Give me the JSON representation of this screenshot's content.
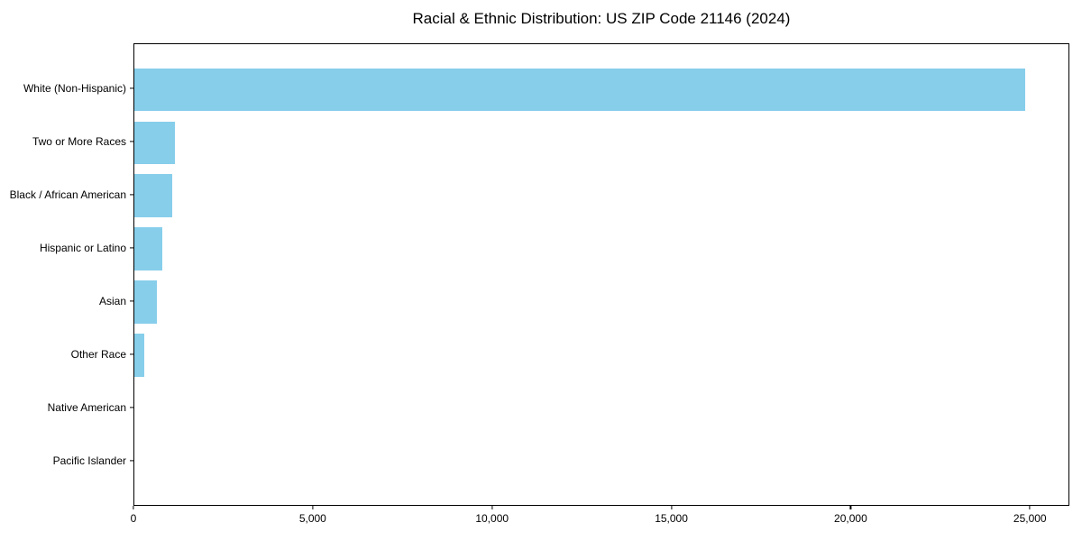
{
  "title": "Racial & Ethnic Distribution: US ZIP Code 21146 (2024)",
  "chart_data": {
    "type": "bar",
    "orientation": "horizontal",
    "title": "Racial & Ethnic Distribution: US ZIP Code 21146 (2024)",
    "xlabel": "",
    "ylabel": "",
    "categories": [
      "White (Non-Hispanic)",
      "Two or More Races",
      "Black / African American",
      "Hispanic or Latino",
      "Asian",
      "Other Race",
      "Native American",
      "Pacific Islander"
    ],
    "values": [
      24840,
      1120,
      1060,
      790,
      640,
      280,
      0,
      0
    ],
    "xlim": [
      0,
      26100
    ],
    "x_ticks": [
      0,
      5000,
      10000,
      15000,
      20000,
      25000
    ],
    "x_tick_labels": [
      "0",
      "5,000",
      "10,000",
      "15,000",
      "20,000",
      "25,000"
    ],
    "bar_color": "#87CEEB",
    "axis_color": "#000000",
    "text_color": "#000000",
    "grid": "off",
    "legend": "none"
  }
}
